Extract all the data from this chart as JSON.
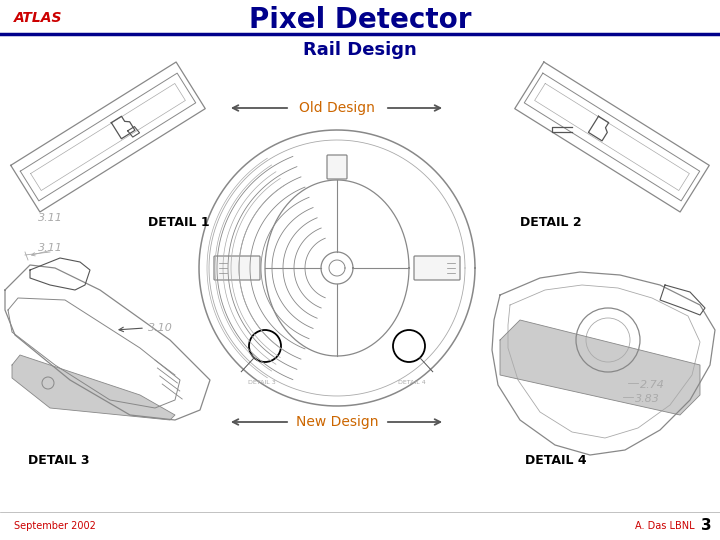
{
  "title": "Pixel Detector",
  "subtitle": "Rail Design",
  "atlas_text": "ATLAS",
  "atlas_color": "#cc0000",
  "title_color": "#00008B",
  "subtitle_color": "#00008B",
  "header_line_color": "#00008B",
  "old_design_label": "Old Design",
  "new_design_label": "New Design",
  "design_label_color": "#cc6600",
  "detail1_label": "DETAIL 1",
  "detail2_label": "DETAIL 2",
  "detail3_label": "DETAIL 3",
  "detail4_label": "DETAIL 4",
  "detail_color": "#000000",
  "footer_left": "September 2002",
  "footer_right": "A. Das LBNL",
  "footer_red": "#cc0000",
  "footer_black": "#000000",
  "page_number": "3",
  "bg_color": "#ffffff",
  "line_color": "#000000",
  "draw_dark": "#555555",
  "draw_mid": "#888888",
  "draw_light": "#aaaaaa",
  "dim_text_color": "#aaaaaa",
  "dim_value_311": "3.11",
  "dim_value_310": "3.10",
  "dim_value_274": "2.74",
  "dim_value_383": "3.83"
}
